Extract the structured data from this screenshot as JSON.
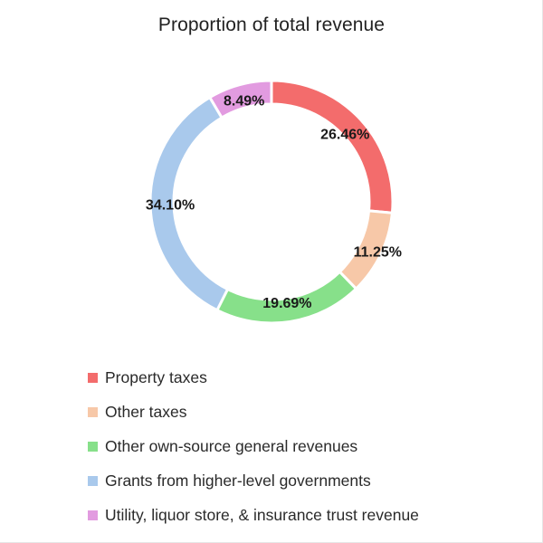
{
  "chart_data": {
    "type": "pie",
    "title": "Proportion of total revenue",
    "categories": [
      "Property taxes",
      "Other taxes",
      "Other own-source general revenues",
      "Grants from higher-level governments",
      "Utility, liquor store, & insurance trust revenue"
    ],
    "values": [
      26.46,
      11.25,
      19.69,
      34.1,
      8.49
    ],
    "data_labels": [
      "26.46%",
      "11.25%",
      "19.69%",
      "34.10%",
      "8.49%"
    ],
    "colors": [
      "#f36c6c",
      "#f7c8a8",
      "#87e08a",
      "#a9c9ec",
      "#e29be0"
    ],
    "donut": true,
    "legend_position": "bottom-left"
  }
}
